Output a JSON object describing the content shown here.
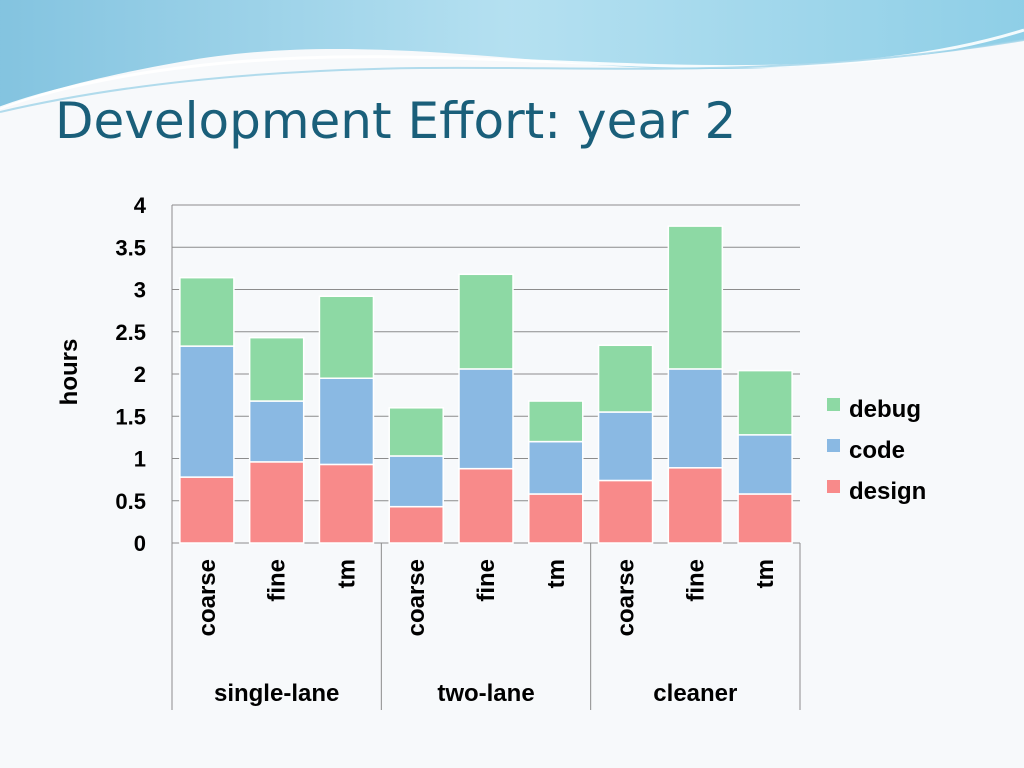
{
  "slide": {
    "title": "Development Effort: year 2"
  },
  "colors": {
    "title": "#1a5f7a",
    "design": "#f88a8a",
    "code": "#8ab9e3",
    "debug": "#8dd9a4",
    "wave_dark": "#5fb3d9",
    "wave_light": "#b9e3f2"
  },
  "chart_data": {
    "type": "bar",
    "stacked": true,
    "ylabel": "hours",
    "ylim": [
      0,
      4
    ],
    "yticks": [
      "0",
      "0.5",
      "1",
      "1.5",
      "2",
      "2.5",
      "3",
      "3.5",
      "4"
    ],
    "grid": true,
    "legend_position": "right",
    "categories": [
      "coarse",
      "fine",
      "tm",
      "coarse",
      "fine",
      "tm",
      "coarse",
      "fine",
      "tm"
    ],
    "groups": [
      {
        "label": "single-lane",
        "span": 3
      },
      {
        "label": "two-lane",
        "span": 3
      },
      {
        "label": "cleaner",
        "span": 3
      }
    ],
    "series": [
      {
        "name": "design",
        "color": "#f88a8a",
        "values": [
          0.78,
          0.96,
          0.93,
          0.43,
          0.88,
          0.58,
          0.74,
          0.89,
          0.58
        ]
      },
      {
        "name": "code",
        "color": "#8ab9e3",
        "values": [
          1.55,
          0.72,
          1.02,
          0.6,
          1.18,
          0.62,
          0.81,
          1.17,
          0.7
        ]
      },
      {
        "name": "debug",
        "color": "#8dd9a4",
        "values": [
          0.81,
          0.75,
          0.97,
          0.57,
          1.12,
          0.48,
          0.79,
          1.69,
          0.76
        ]
      }
    ]
  }
}
